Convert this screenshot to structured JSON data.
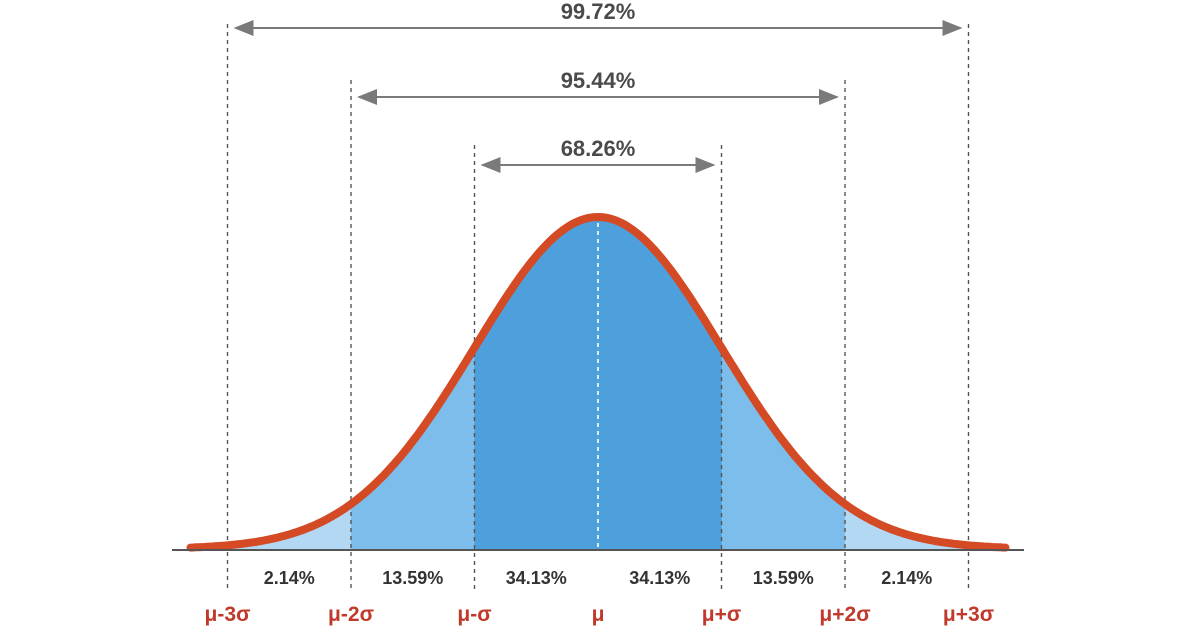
{
  "chart_data": {
    "type": "area",
    "title": "",
    "xlabel": "",
    "ylabel": "",
    "x_ticks": [
      "μ-3σ",
      "μ-2σ",
      "μ-σ",
      "μ",
      "μ+σ",
      "μ+2σ",
      "μ+3σ"
    ],
    "x_range": [
      -3.3,
      3.3
    ],
    "segments": [
      {
        "from": -3,
        "to": -2,
        "percent": 2.14,
        "label": "2.14%"
      },
      {
        "from": -2,
        "to": -1,
        "percent": 13.59,
        "label": "13.59%"
      },
      {
        "from": -1,
        "to": 0,
        "percent": 34.13,
        "label": "34.13%"
      },
      {
        "from": 0,
        "to": 1,
        "percent": 34.13,
        "label": "34.13%"
      },
      {
        "from": 1,
        "to": 2,
        "percent": 13.59,
        "label": "13.59%"
      },
      {
        "from": 2,
        "to": 3,
        "percent": 2.14,
        "label": "2.14%"
      }
    ],
    "spans": [
      {
        "from": -3,
        "to": 3,
        "percent": 99.72,
        "label": "99.72%"
      },
      {
        "from": -2,
        "to": 2,
        "percent": 95.44,
        "label": "95.44%"
      },
      {
        "from": -1,
        "to": 1,
        "percent": 68.26,
        "label": "68.26%"
      }
    ],
    "grid": false,
    "legend": "none"
  },
  "colors": {
    "curve": "#d44a25",
    "fill_inner": "#4da0dc",
    "fill_middle": "#7cbdeb",
    "fill_outer": "#b3d8f3",
    "axis": "#555555",
    "dashed": "#555555",
    "tick_label": "#c0392b",
    "arrow": "#7a7a7a"
  }
}
